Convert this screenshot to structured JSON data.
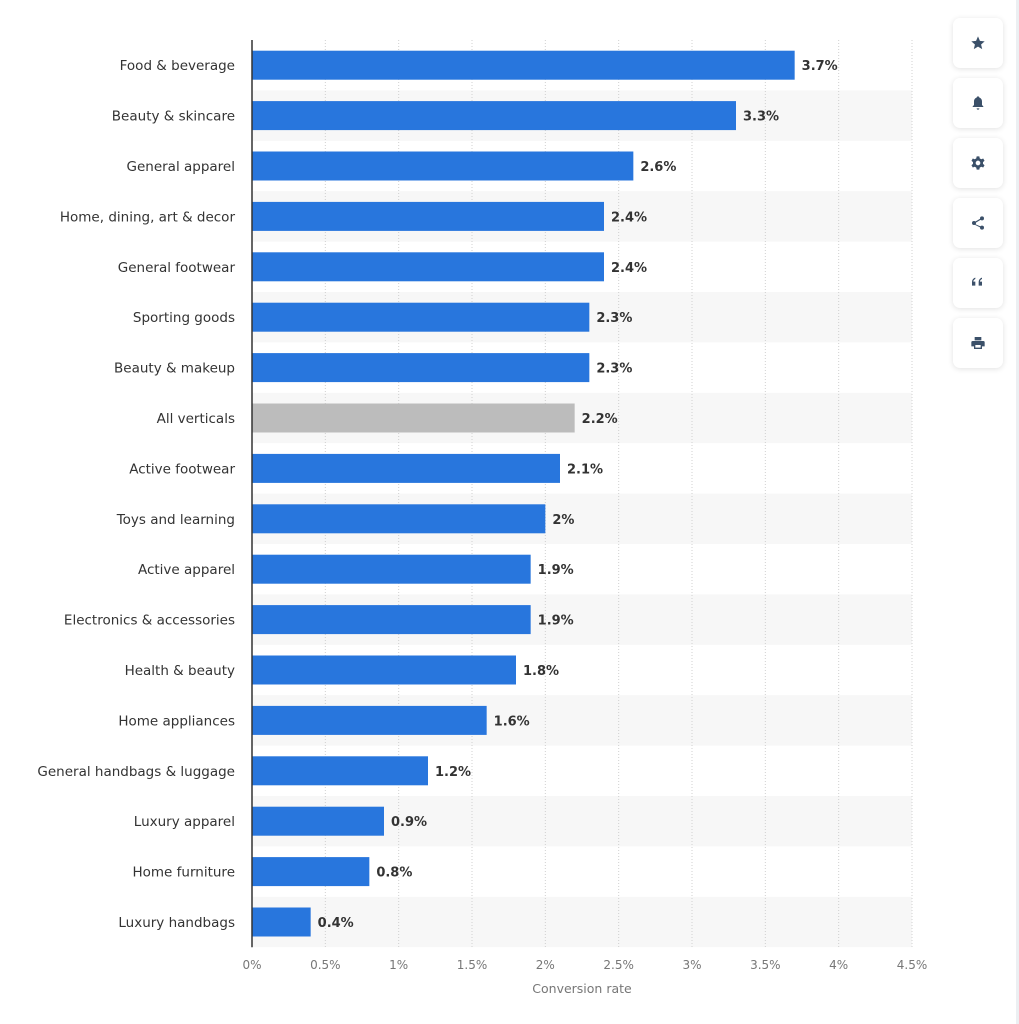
{
  "chart_data": {
    "type": "bar",
    "orientation": "horizontal",
    "categories": [
      "Food & beverage",
      "Beauty & skincare",
      "General apparel",
      "Home, dining, art & decor",
      "General footwear",
      "Sporting goods",
      "Beauty & makeup",
      "All verticals",
      "Active footwear",
      "Toys and learning",
      "Active apparel",
      "Electronics & accessories",
      "Health & beauty",
      "Home appliances",
      "General handbags & luggage",
      "Luxury apparel",
      "Home furniture",
      "Luxury handbags"
    ],
    "values": [
      3.7,
      3.3,
      2.6,
      2.4,
      2.4,
      2.3,
      2.3,
      2.2,
      2.1,
      2,
      1.9,
      1.9,
      1.8,
      1.6,
      1.2,
      0.9,
      0.8,
      0.4
    ],
    "data_labels": [
      "3.7%",
      "3.3%",
      "2.6%",
      "2.4%",
      "2.4%",
      "2.3%",
      "2.3%",
      "2.2%",
      "2.1%",
      "2%",
      "1.9%",
      "1.9%",
      "1.8%",
      "1.6%",
      "1.2%",
      "0.9%",
      "0.8%",
      "0.4%"
    ],
    "highlight_category": "All verticals",
    "xlabel": "Conversion rate",
    "xlim": [
      0,
      4.5
    ],
    "xticks": [
      0,
      0.5,
      1,
      1.5,
      2,
      2.5,
      3,
      3.5,
      4,
      4.5
    ],
    "xtick_labels": [
      "0%",
      "0.5%",
      "1%",
      "1.5%",
      "2%",
      "2.5%",
      "3%",
      "3.5%",
      "4%",
      "4.5%"
    ],
    "grid": true,
    "colors": {
      "bar": "#2876dd",
      "highlight": "#bcbcbc",
      "band": "#f7f7f7"
    }
  },
  "toolbar": {
    "buttons": [
      {
        "icon": "star-icon",
        "name": "favorite-button"
      },
      {
        "icon": "bell-icon",
        "name": "notification-button"
      },
      {
        "icon": "gear-icon",
        "name": "settings-button"
      },
      {
        "icon": "share-icon",
        "name": "share-button"
      },
      {
        "icon": "quote-icon",
        "name": "cite-button"
      },
      {
        "icon": "printer-icon",
        "name": "print-button"
      }
    ]
  }
}
